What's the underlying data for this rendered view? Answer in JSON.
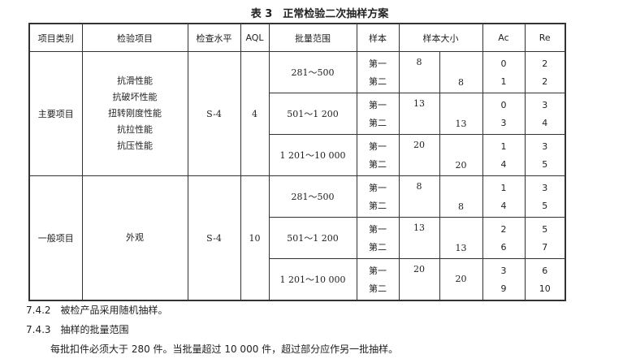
{
  "title": "表 3　正常检验二次抽样方案",
  "headers": [
    "项目类别",
    "检验项目",
    "检查水平",
    "AQL",
    "批量范围",
    "样本",
    "样本大小",
    "Ac",
    "Re"
  ],
  "sample_labels": [
    "第一",
    "第二"
  ],
  "groups": [
    {
      "category": "主要项目",
      "items": [
        "抗滑性能",
        "抗破坏性能",
        "扭转刚度性能",
        "抗拉性能",
        "抗压性能"
      ],
      "level": "S-4",
      "aql": "4",
      "rows": [
        {
          "range": "281～500",
          "n1": "8",
          "n2": "8",
          "ac": [
            "0",
            "1"
          ],
          "re": [
            "2",
            "2"
          ]
        },
        {
          "range": "501～1 200",
          "n1": "13",
          "n2": "13",
          "ac": [
            "0",
            "3"
          ],
          "re": [
            "3",
            "4"
          ]
        },
        {
          "range": "1 201～10 000",
          "n1": "20",
          "n2": "20",
          "ac": [
            "1",
            "4"
          ],
          "re": [
            "3",
            "5"
          ]
        }
      ]
    },
    {
      "category": "一般项目",
      "items": [
        "外观"
      ],
      "level": "S-4",
      "aql": "10",
      "rows": [
        {
          "range": "281～500",
          "n1": "8",
          "n2": "8",
          "ac": [
            "1",
            "4"
          ],
          "re": [
            "3",
            "5"
          ]
        },
        {
          "range": "501～1 200",
          "n1": "13",
          "n2": "13",
          "ac": [
            "2",
            "6"
          ],
          "re": [
            "5",
            "7"
          ]
        },
        {
          "range": "1 201～10 000",
          "n1": "20",
          "n2": "20",
          "ac": [
            "3",
            "9"
          ],
          "re": [
            "6",
            "10"
          ]
        }
      ]
    }
  ],
  "paragraphs": [
    "7.4.2　被检产品采用随机抽样。",
    "7.4.3　抽样的批量范围",
    "每批扣件必须大于 280 件。当批量超过 10 000 件，超过部分应作另一批抽样。"
  ]
}
